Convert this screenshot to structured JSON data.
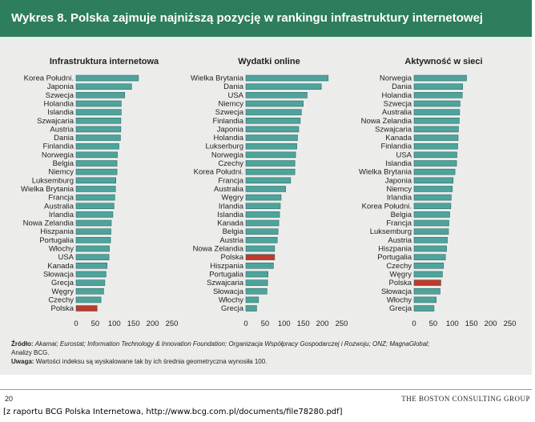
{
  "title": "Wykres 8. Polska zajmuje najniższą pozycję w rankingu infrastruktury internetowej",
  "colors": {
    "header": "#2e7d5c",
    "bar": "#4ea49c",
    "highlight_bar": "#c0392b",
    "highlight_text": "#c0392b",
    "panel": "#ececea"
  },
  "highlight": "Polska",
  "chart_data": [
    {
      "type": "bar",
      "orientation": "horizontal",
      "title": "Infrastruktura internetowa",
      "xlim": [
        0,
        250
      ],
      "xticks": [
        "0",
        "50",
        "100",
        "150",
        "200",
        "250"
      ],
      "categories": [
        "Korea Południ.",
        "Japonia",
        "Szwecja",
        "Holandia",
        "Islandia",
        "Szwajcaria",
        "Austria",
        "Dania",
        "Finlandia",
        "Norwegia",
        "Belgia",
        "Niemcy",
        "Luksemburg",
        "Wielka Brytania",
        "Francja",
        "Australia",
        "Irlandia",
        "Nowa Zelandia",
        "Hiszpania",
        "Portugalia",
        "Włochy",
        "USA",
        "Kanada",
        "Słowacja",
        "Grecja",
        "Węgry",
        "Czechy",
        "Polska"
      ],
      "values": [
        163,
        145,
        127,
        118,
        118,
        117,
        117,
        116,
        112,
        108,
        107,
        107,
        104,
        103,
        101,
        99,
        96,
        92,
        91,
        90,
        87,
        86,
        81,
        78,
        75,
        72,
        65,
        55
      ]
    },
    {
      "type": "bar",
      "orientation": "horizontal",
      "title": "Wydatki online",
      "xlim": [
        0,
        250
      ],
      "xticks": [
        "0",
        "50",
        "100",
        "150",
        "200",
        "250"
      ],
      "categories": [
        "Wielka Brytania",
        "Dania",
        "USA",
        "Niemcy",
        "Szwecja",
        "Finlandia",
        "Japonia",
        "Holandia",
        "Lukserburg",
        "Norwegia",
        "Czechy",
        "Korea Południ.",
        "Francja",
        "Australia",
        "Węgry",
        "Irlandia",
        "Islandia",
        "Kanada",
        "Belgia",
        "Austria",
        "Nowa Zelandia",
        "Polska",
        "Hiszpania",
        "Portugalia",
        "Szwajcaria",
        "Słowacja",
        "Włochy",
        "Grecja"
      ],
      "values": [
        215,
        197,
        160,
        150,
        145,
        142,
        138,
        135,
        133,
        130,
        128,
        128,
        117,
        104,
        92,
        90,
        88,
        86,
        84,
        82,
        75,
        75,
        72,
        58,
        57,
        55,
        33,
        28
      ]
    },
    {
      "type": "bar",
      "orientation": "horizontal",
      "title": "Aktywność w sieci",
      "xlim": [
        0,
        250
      ],
      "xticks": [
        "0",
        "50",
        "100",
        "150",
        "200",
        "250"
      ],
      "categories": [
        "Norwegia",
        "Dania",
        "Holandia",
        "Szwecja",
        "Australia",
        "Nowa Zelandia",
        "Szwajcaria",
        "Kanada",
        "Finlandia",
        "USA",
        "Islandia",
        "Wielka Brytania",
        "Japonia",
        "Niemcy",
        "Irlandia",
        "Korea Południ.",
        "Belgia",
        "Francja",
        "Luksemburg",
        "Austria",
        "Hiszpania",
        "Portugalia",
        "Czechy",
        "Węgry",
        "Polska",
        "Słowacja",
        "Włochy",
        "Grecja"
      ],
      "values": [
        137,
        127,
        126,
        120,
        119,
        118,
        116,
        115,
        114,
        112,
        111,
        107,
        102,
        100,
        97,
        96,
        93,
        91,
        90,
        87,
        85,
        82,
        77,
        74,
        70,
        68,
        58,
        52
      ]
    }
  ],
  "footnote": {
    "source_label": "Źródło:",
    "source_text": "Akamai; Eurostat; Information Technology & Innovation Foundation; Organizacja Współpracy Gospodarczej i Rozwoju; ONZ; MagnaGlobal;",
    "source_text_2": "Analizy BCG.",
    "note_label": "Uwaga:",
    "note_text": "Wartości indeksu są wyskalowane tak by ich średnia geometryczna wynosiła 100."
  },
  "page_number": "20",
  "brand": "THE BOSTON CONSULTING GROUP",
  "source_caption": "[z raportu BCG Polska Internetowa, http://www.bcg.com.pl/documents/file78280.pdf]"
}
